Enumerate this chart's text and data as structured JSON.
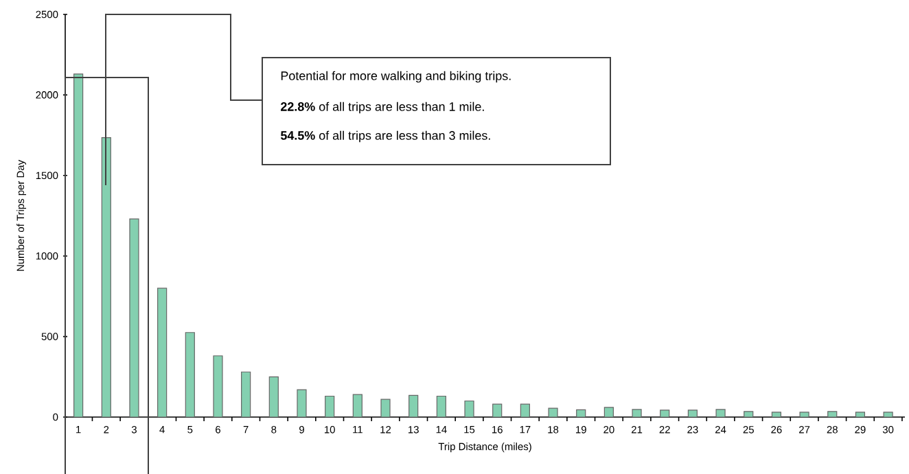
{
  "chart_data": {
    "type": "bar",
    "xlabel": "Trip Distance (miles)",
    "ylabel": "Number of Trips per Day",
    "categories": [
      "1",
      "2",
      "3",
      "4",
      "5",
      "6",
      "7",
      "8",
      "9",
      "10",
      "11",
      "12",
      "13",
      "14",
      "15",
      "16",
      "17",
      "18",
      "19",
      "20",
      "21",
      "22",
      "23",
      "24",
      "25",
      "26",
      "27",
      "28",
      "29",
      "30"
    ],
    "values": [
      2130,
      1735,
      1230,
      800,
      525,
      380,
      280,
      250,
      170,
      130,
      140,
      110,
      135,
      130,
      100,
      80,
      80,
      55,
      45,
      60,
      47,
      43,
      43,
      47,
      35,
      30,
      30,
      35,
      30,
      30
    ],
    "color": "#84d0b0",
    "ylim": [
      0,
      2500
    ],
    "yticks": [
      0,
      500,
      1000,
      1500,
      2000,
      2500
    ],
    "annotations": [
      "Potential for more walking and biking trips.",
      "**22.8%** of all trips are less than 1 mile.",
      "**54.5%** of all trips are less than 3 miles."
    ]
  }
}
